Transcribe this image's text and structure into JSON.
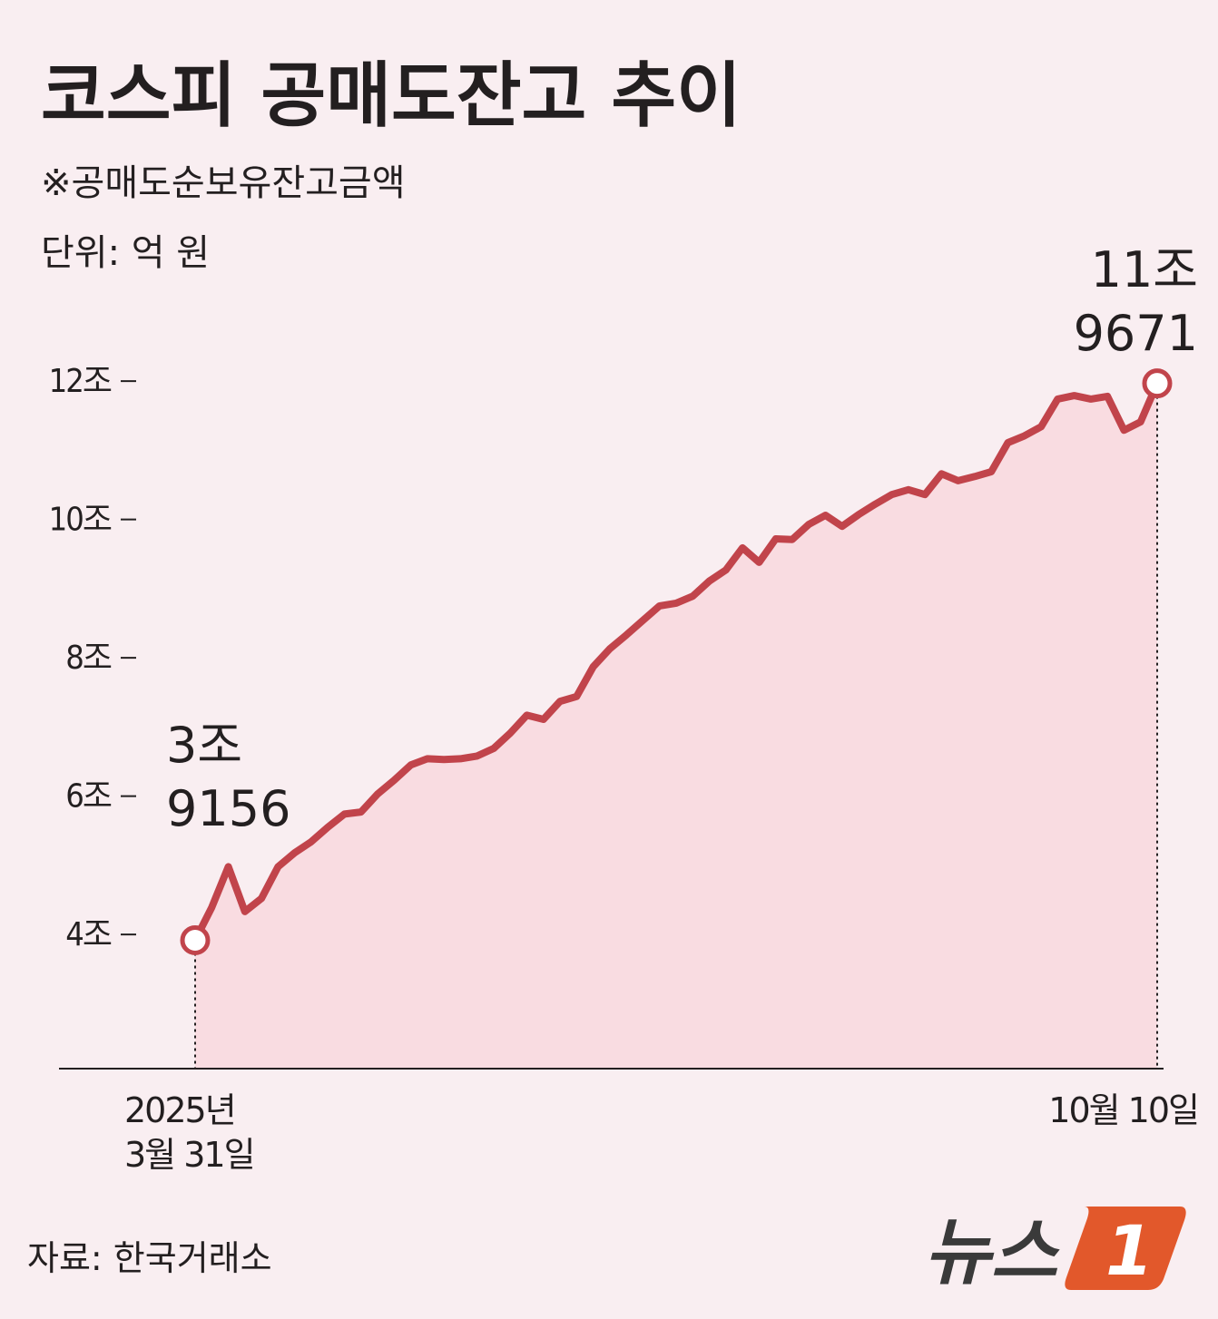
{
  "chart_data": {
    "type": "line",
    "title": "코스피 공매도잔고 추이",
    "subtitle": "※공매도순보유잔고금액",
    "unit_label": "단위: 억 원",
    "source": "자료: 한국거래소",
    "categories": [
      "2025년\n3월 31일",
      null,
      null,
      null,
      null,
      null,
      null,
      null,
      null,
      null,
      null,
      null,
      null,
      null,
      null,
      null,
      null,
      null,
      null,
      null,
      null,
      null,
      null,
      null,
      null,
      null,
      null,
      null,
      null,
      null,
      null,
      null,
      null,
      null,
      null,
      null,
      null,
      null,
      null,
      null,
      null,
      null,
      null,
      null,
      null,
      null,
      null,
      null,
      null,
      null,
      null,
      null,
      null,
      null,
      null,
      null,
      null,
      null,
      "10월 10일"
    ],
    "series": [
      {
        "name": "공매도잔고",
        "color": "#c1444b",
        "values": [
          39156,
          43900,
          49800,
          43300,
          45200,
          49800,
          51800,
          53400,
          55500,
          57400,
          57700,
          60300,
          62300,
          64500,
          65400,
          65300,
          65400,
          65800,
          66900,
          69100,
          71700,
          71100,
          73700,
          74400,
          78700,
          81300,
          83300,
          85400,
          87500,
          87900,
          88900,
          91100,
          92700,
          95900,
          93800,
          97200,
          97100,
          99300,
          100600,
          99000,
          100700,
          102200,
          103600,
          104300,
          103600,
          106600,
          105600,
          106200,
          106900,
          111100,
          112100,
          113400,
          117400,
          117900,
          117400,
          117800,
          112900,
          114100,
          119671
        ],
        "value_labels": [
          "3조\n9156",
          null,
          null,
          null,
          null,
          null,
          null,
          null,
          null,
          null,
          null,
          null,
          null,
          null,
          null,
          null,
          null,
          null,
          null,
          null,
          null,
          null,
          null,
          null,
          null,
          null,
          null,
          null,
          null,
          null,
          null,
          null,
          null,
          null,
          null,
          null,
          null,
          null,
          null,
          null,
          null,
          null,
          null,
          null,
          null,
          null,
          null,
          null,
          null,
          null,
          null,
          null,
          null,
          null,
          null,
          null,
          null,
          null,
          "11조\n9671"
        ]
      }
    ],
    "ylim": [
      20600,
      125000
    ],
    "yticks": [
      {
        "value": 40000,
        "label": "4조"
      },
      {
        "value": 60000,
        "label": "6조"
      },
      {
        "value": 80000,
        "label": "8조"
      },
      {
        "value": 100000,
        "label": "10조"
      },
      {
        "value": 120000,
        "label": "12조"
      }
    ],
    "area_color": "#f9dce1",
    "grid": false
  },
  "logo": {
    "text": "뉴스",
    "mark": "1"
  }
}
